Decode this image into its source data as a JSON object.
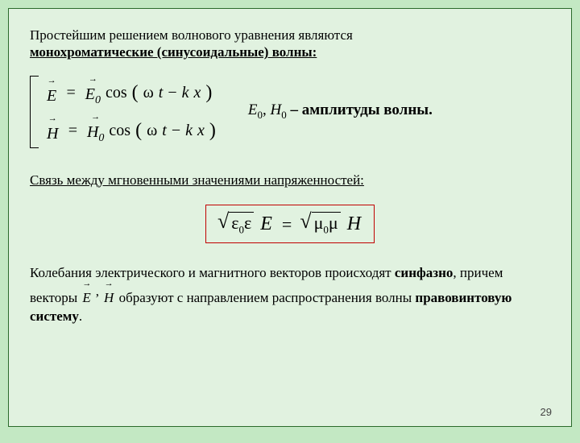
{
  "intro_line1": "Простейшим решением волнового уравнения являются",
  "intro_line2": "монохроматические (синусоидальные) волны:",
  "equation1": {
    "lhs_symbol": "E",
    "rhs_amp": "E",
    "cos_label": "cos",
    "arg_omega": "ω",
    "arg_t": "t",
    "arg_minus": " − ",
    "arg_k": "k",
    "arg_x": "x"
  },
  "equation2": {
    "lhs_symbol": "H",
    "rhs_amp": "H",
    "cos_label": "cos",
    "arg_omega": "ω",
    "arg_t": "t",
    "arg_minus": " − ",
    "arg_k": "k",
    "arg_x": "x"
  },
  "amp_E": "E",
  "amp_E_sub": "0",
  "amp_sep": ", ",
  "amp_H": "H",
  "amp_H_sub": "0",
  "amp_tail": " – амплитуды волны.",
  "rel_heading": "Связь между мгновенными значениями напряженностей:",
  "boxed": {
    "eps0": "ε",
    "eps0_sub": "0",
    "eps": "ε",
    "E": "E",
    "eq": "=",
    "mu0": "μ",
    "mu0_sub": "0",
    "mu": "μ",
    "H": "H"
  },
  "para3_a": "Колебания электрического и магнитного векторов происходят ",
  "para3_b": "синфазно",
  "para3_c": ", причем векторы  ",
  "para3_vec1": "E",
  "para3_vec_sep": ",",
  "para3_vec2": "H",
  "para3_d": "  образуют с направлением распространения волны ",
  "para3_e": "правовинтовую систему",
  "para3_f": ".",
  "page_number": "29",
  "colors": {
    "page_bg": "#c3e8c3",
    "slide_bg": "#e1f2e0",
    "slide_border": "#2b6b2b",
    "box_border": "#c00000",
    "text": "#000000"
  }
}
